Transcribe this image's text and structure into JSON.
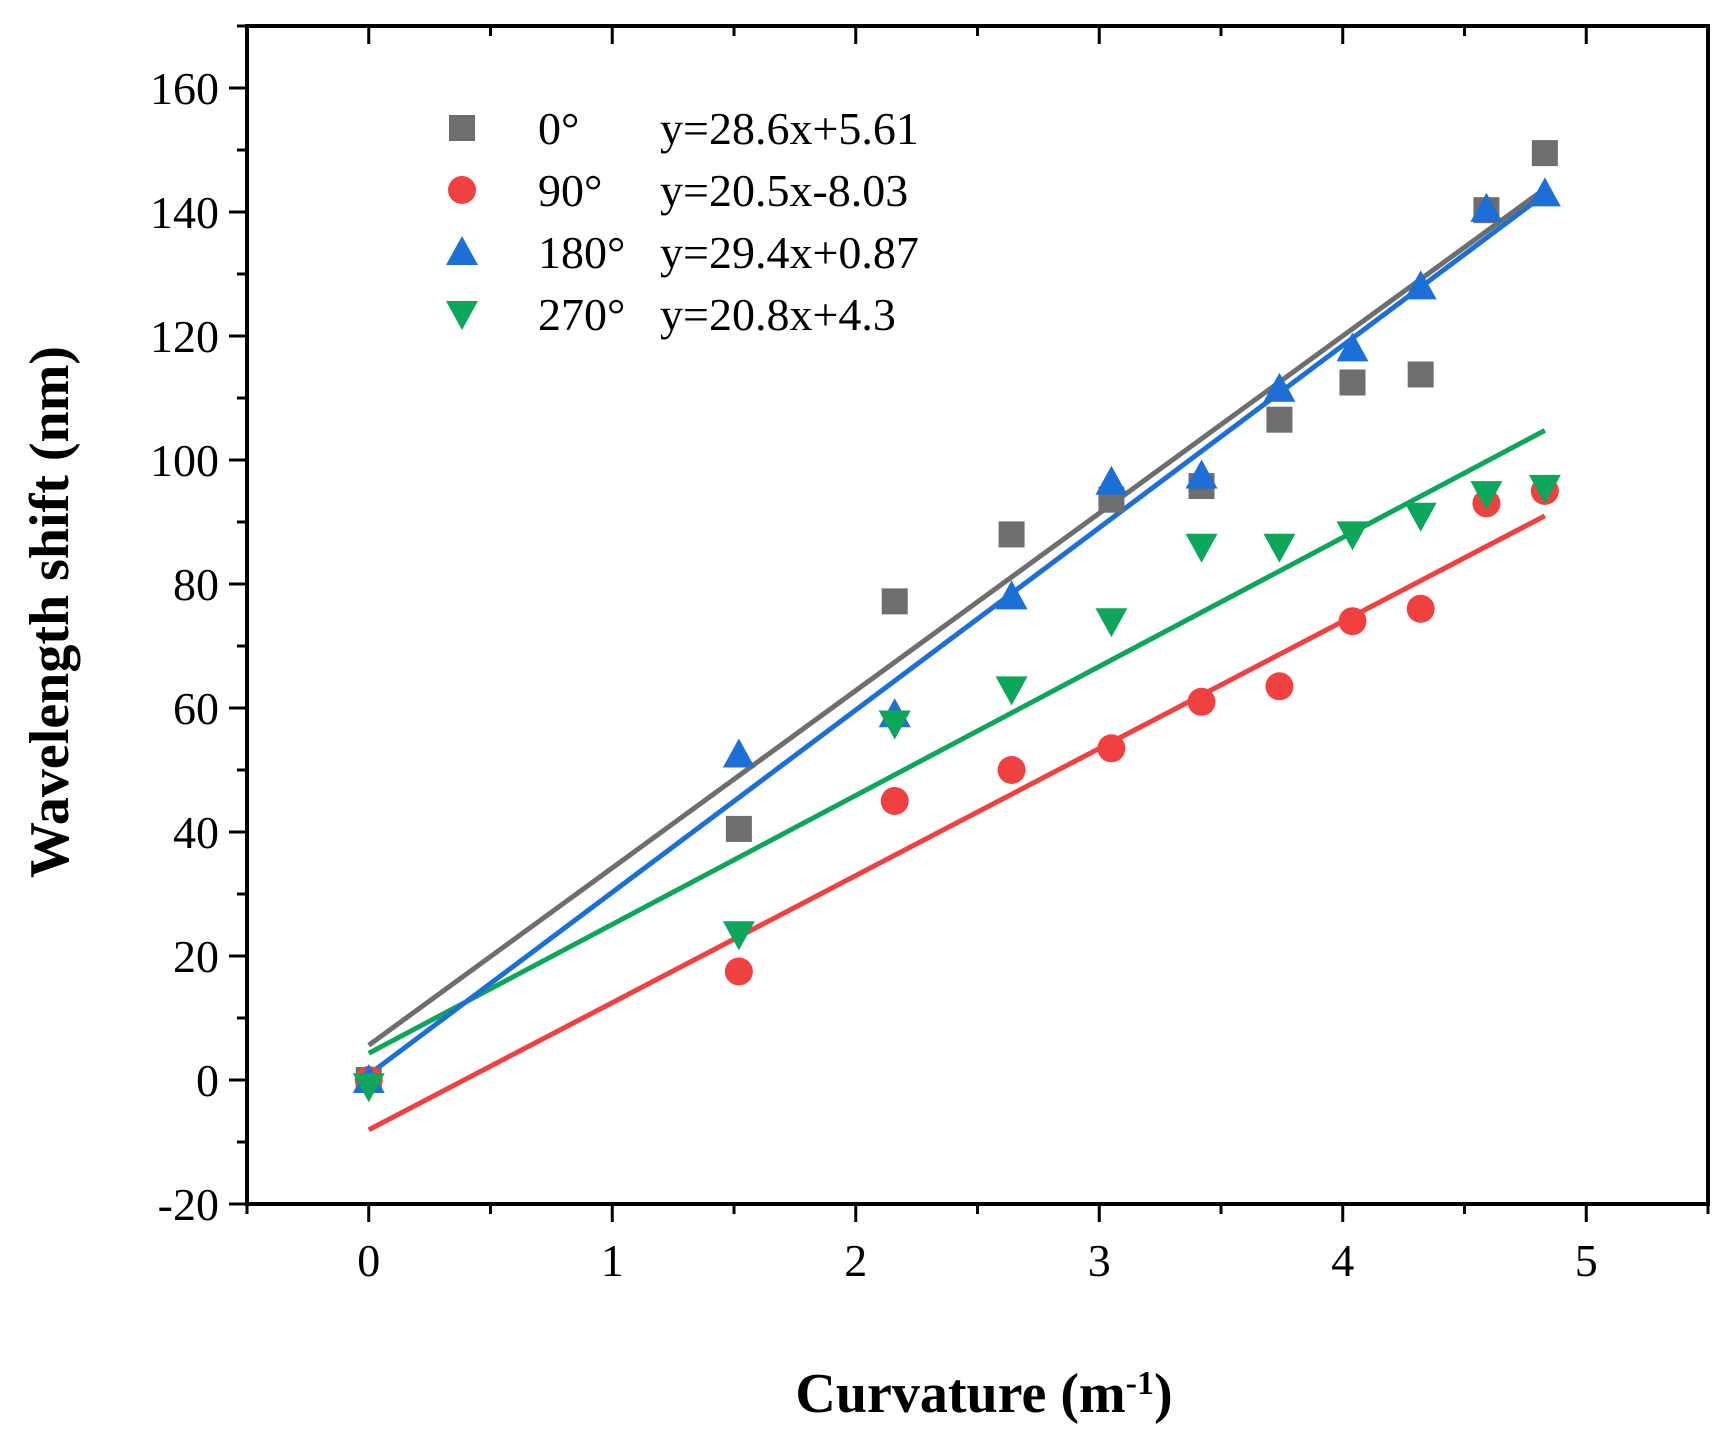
{
  "chart_data": {
    "type": "scatter",
    "xlabel": "Curvature (m",
    "xlabel_sup": "-1",
    "xlabel_close": ")",
    "ylabel": "Wavelength shift (nm)",
    "xlim": [
      -0.5,
      5.5
    ],
    "ylim": [
      -20,
      170
    ],
    "x_ticks": [
      0,
      1,
      2,
      3,
      4,
      5
    ],
    "y_ticks": [
      -20,
      0,
      20,
      40,
      60,
      80,
      100,
      120,
      140,
      160
    ],
    "x_tick_labels": [
      "0",
      "1",
      "2",
      "3",
      "4",
      "5"
    ],
    "y_tick_labels": [
      "-20",
      "0",
      "20",
      "40",
      "60",
      "80",
      "100",
      "120",
      "140",
      "160"
    ],
    "grid": false,
    "legend_position": "top-left",
    "x": [
      0,
      1.52,
      2.16,
      2.64,
      3.05,
      3.42,
      3.74,
      4.04,
      4.32,
      4.59,
      4.83
    ],
    "series": [
      {
        "name": "0°",
        "equation": "y=28.6x+5.61",
        "marker": "square",
        "color": "#6e6e6e",
        "fit_color": "#6e6e6e",
        "fit": {
          "slope": 28.6,
          "intercept": 5.61
        },
        "values": [
          0,
          40.5,
          77.2,
          88,
          93.6,
          95.8,
          106.5,
          112.5,
          113.8,
          140.3,
          149.5
        ]
      },
      {
        "name": "90°",
        "equation": "y=20.5x-8.03",
        "marker": "circle",
        "color": "#f04040",
        "fit_color": "#f04040",
        "fit": {
          "slope": 20.5,
          "intercept": -8.03
        },
        "values": [
          0,
          17.5,
          45,
          50,
          53.5,
          61,
          63.5,
          74,
          76,
          93,
          95
        ]
      },
      {
        "name": "180°",
        "equation": "y=29.4x+0.87",
        "marker": "triangle-up",
        "color": "#1c6fd6",
        "fit_color": "#1c6fd6",
        "fit": {
          "slope": 29.4,
          "intercept": 0.87
        },
        "values": [
          0,
          52.5,
          59,
          78,
          96.5,
          97.5,
          111.5,
          118,
          128,
          140.5,
          143
        ]
      },
      {
        "name": "270°",
        "equation": "y=20.8x+4.3",
        "marker": "triangle-down",
        "color": "#0ea65a",
        "fit_color": "#0ea65a",
        "fit": {
          "slope": 20.8,
          "intercept": 4.3
        },
        "values": [
          -1,
          23.5,
          57.5,
          63,
          74,
          86,
          86,
          88,
          91,
          94.5,
          95.5
        ]
      }
    ]
  }
}
